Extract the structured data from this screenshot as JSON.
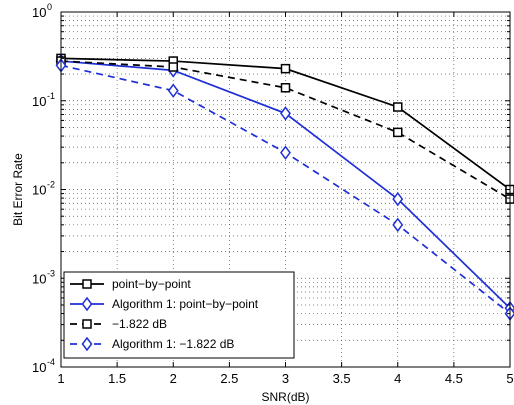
{
  "chart_data": {
    "type": "line",
    "xlabel": "SNR(dB)",
    "ylabel": "Bit Error Rate",
    "xlim": [
      1,
      5
    ],
    "ylim": [
      0.0001,
      1
    ],
    "yscale": "log",
    "grid": true,
    "x_ticks": [
      "1",
      "1.5",
      "2",
      "2.5",
      "3",
      "3.5",
      "4",
      "4.5",
      "5"
    ],
    "y_ticks": [
      {
        "base": "10",
        "exp": "-4"
      },
      {
        "base": "10",
        "exp": "-3"
      },
      {
        "base": "10",
        "exp": "-2"
      },
      {
        "base": "10",
        "exp": "-1"
      },
      {
        "base": "10",
        "exp": "0"
      }
    ],
    "legend_position": "bottom-left",
    "series": [
      {
        "name": "point−by−point",
        "color": "#000000",
        "linestyle": "solid",
        "marker": "square",
        "x": [
          1,
          2,
          3,
          4,
          5
        ],
        "y": [
          0.3,
          0.28,
          0.23,
          0.085,
          0.01
        ]
      },
      {
        "name": "Algorithm 1: point−by−point",
        "color": "#1f2fd6",
        "linestyle": "solid",
        "marker": "diamond",
        "x": [
          1,
          2,
          3,
          4,
          5
        ],
        "y": [
          0.28,
          0.22,
          0.072,
          0.0078,
          0.00046
        ]
      },
      {
        "name": "−1.822 dB",
        "color": "#000000",
        "linestyle": "dashed",
        "marker": "square",
        "x": [
          1,
          2,
          3,
          4,
          5
        ],
        "y": [
          0.28,
          0.24,
          0.14,
          0.044,
          0.0078
        ]
      },
      {
        "name": "Algorithm 1: −1.822 dB",
        "color": "#1f2fd6",
        "linestyle": "dashed",
        "marker": "diamond",
        "x": [
          1,
          2,
          3,
          4,
          5
        ],
        "y": [
          0.25,
          0.13,
          0.026,
          0.004,
          0.0004
        ]
      }
    ]
  }
}
